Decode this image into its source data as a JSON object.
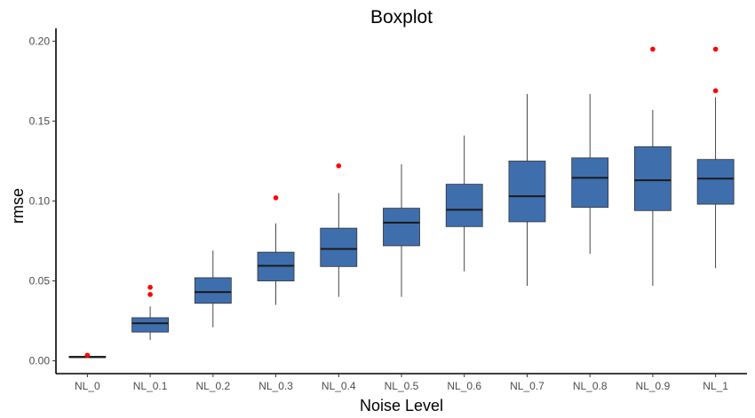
{
  "chart_data": {
    "type": "boxplot",
    "title": "Boxplot",
    "xlabel": "Noise Level",
    "ylabel": "rmse",
    "ylim": [
      -0.008,
      0.208
    ],
    "yticks": [
      "0.00",
      "0.05",
      "0.10",
      "0.15",
      "0.20"
    ],
    "ytick_values": [
      0.0,
      0.05,
      0.1,
      0.15,
      0.2
    ],
    "grid": false,
    "box_color": "#3f6ead",
    "median_color": "#1a1a1a",
    "outlier_color": "#ff0000",
    "categories": [
      "NL_0",
      "NL_0.1",
      "NL_0.2",
      "NL_0.3",
      "NL_0.4",
      "NL_0.5",
      "NL_0.6",
      "NL_0.7",
      "NL_0.8",
      "NL_0.9",
      "NL_1"
    ],
    "boxes": [
      {
        "min": 0.002,
        "q1": 0.0022,
        "median": 0.0025,
        "q3": 0.0028,
        "max": 0.003,
        "outliers": [
          0.0035
        ]
      },
      {
        "min": 0.013,
        "q1": 0.018,
        "median": 0.0235,
        "q3": 0.027,
        "max": 0.034,
        "outliers": [
          0.0415,
          0.046
        ]
      },
      {
        "min": 0.021,
        "q1": 0.036,
        "median": 0.043,
        "q3": 0.052,
        "max": 0.069,
        "outliers": []
      },
      {
        "min": 0.035,
        "q1": 0.05,
        "median": 0.0595,
        "q3": 0.068,
        "max": 0.086,
        "outliers": [
          0.102
        ]
      },
      {
        "min": 0.04,
        "q1": 0.059,
        "median": 0.07,
        "q3": 0.083,
        "max": 0.105,
        "outliers": [
          0.122
        ]
      },
      {
        "min": 0.04,
        "q1": 0.072,
        "median": 0.0865,
        "q3": 0.0955,
        "max": 0.123,
        "outliers": []
      },
      {
        "min": 0.056,
        "q1": 0.084,
        "median": 0.0945,
        "q3": 0.1105,
        "max": 0.141,
        "outliers": []
      },
      {
        "min": 0.047,
        "q1": 0.087,
        "median": 0.103,
        "q3": 0.125,
        "max": 0.167,
        "outliers": []
      },
      {
        "min": 0.067,
        "q1": 0.096,
        "median": 0.1145,
        "q3": 0.127,
        "max": 0.167,
        "outliers": []
      },
      {
        "min": 0.047,
        "q1": 0.094,
        "median": 0.113,
        "q3": 0.134,
        "max": 0.157,
        "outliers": [
          0.195
        ]
      },
      {
        "min": 0.058,
        "q1": 0.098,
        "median": 0.114,
        "q3": 0.126,
        "max": 0.165,
        "outliers": [
          0.169,
          0.195
        ]
      }
    ]
  }
}
